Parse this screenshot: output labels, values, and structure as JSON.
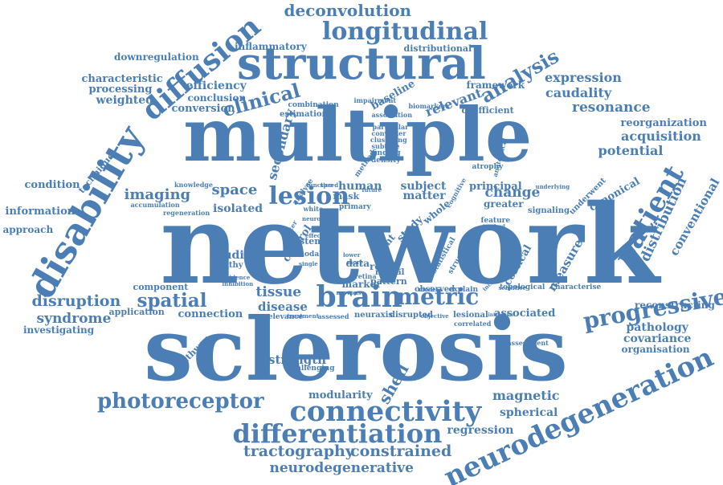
{
  "color": "#4a7eb5",
  "words": [
    {
      "text": "network"
    },
    {
      "text": "sclerosis"
    },
    {
      "text": "multiple"
    },
    {
      "text": "structural"
    },
    {
      "text": "neurodegeneration"
    },
    {
      "text": "disability"
    },
    {
      "text": "connectivity"
    },
    {
      "text": "differentiation"
    },
    {
      "text": "longitudinal"
    },
    {
      "text": "brain"
    },
    {
      "text": "photoreceptor"
    },
    {
      "text": "progressive"
    },
    {
      "text": "diffusion"
    },
    {
      "text": "patient"
    },
    {
      "text": "metric"
    },
    {
      "text": "lesion"
    },
    {
      "text": "deconvolution"
    },
    {
      "text": "clinical"
    },
    {
      "text": "analysis"
    },
    {
      "text": "resonance"
    },
    {
      "text": "tractography"
    },
    {
      "text": "constrained"
    },
    {
      "text": "neurodegenerative"
    },
    {
      "text": "distribution"
    },
    {
      "text": "spatial"
    },
    {
      "text": "disruption"
    },
    {
      "text": "imaging"
    },
    {
      "text": "space"
    },
    {
      "text": "shell"
    },
    {
      "text": "magnetic"
    },
    {
      "text": "syndrome"
    },
    {
      "text": "conventional"
    },
    {
      "text": "measure"
    },
    {
      "text": "expression"
    },
    {
      "text": "caudality"
    },
    {
      "text": "acquisition"
    },
    {
      "text": "potential"
    },
    {
      "text": "change"
    },
    {
      "text": "strength"
    },
    {
      "text": "spherical"
    },
    {
      "text": "regression"
    },
    {
      "text": "modularity"
    },
    {
      "text": "tissue"
    },
    {
      "text": "disease"
    },
    {
      "text": "pathology"
    },
    {
      "text": "covariance"
    },
    {
      "text": "organisation"
    },
    {
      "text": "reconstructing"
    },
    {
      "text": "efficiency"
    },
    {
      "text": "weighted"
    },
    {
      "text": "characteristic"
    },
    {
      "text": "processing"
    },
    {
      "text": "conversion"
    },
    {
      "text": "conclusion"
    },
    {
      "text": "downregulation"
    },
    {
      "text": "inflammatory"
    },
    {
      "text": "distributional"
    },
    {
      "text": "framework"
    },
    {
      "text": "reorganization"
    },
    {
      "text": "relevant"
    },
    {
      "text": "secondary"
    },
    {
      "text": "human"
    },
    {
      "text": "subject"
    },
    {
      "text": "matter"
    },
    {
      "text": "isolated"
    },
    {
      "text": "studies"
    },
    {
      "text": "healthy"
    },
    {
      "text": "condition"
    },
    {
      "text": "information"
    },
    {
      "text": "approach"
    },
    {
      "text": "technique"
    },
    {
      "text": "connection"
    },
    {
      "text": "investigating"
    },
    {
      "text": "application"
    },
    {
      "text": "component"
    },
    {
      "text": "pathway"
    },
    {
      "text": "principal"
    },
    {
      "text": "canonical"
    },
    {
      "text": "cortical"
    },
    {
      "text": "associated"
    },
    {
      "text": "baseline"
    },
    {
      "text": "coefficient"
    },
    {
      "text": "estimation"
    },
    {
      "text": "combination"
    },
    {
      "text": "control"
    },
    {
      "text": "result"
    },
    {
      "text": "marker"
    },
    {
      "text": "data"
    },
    {
      "text": "whole"
    },
    {
      "text": "study"
    },
    {
      "text": "sdmt"
    },
    {
      "text": "greater"
    },
    {
      "text": "underwent"
    },
    {
      "text": "signaling"
    },
    {
      "text": "characterise"
    },
    {
      "text": "assessment"
    },
    {
      "text": "neuraxis"
    },
    {
      "text": "disrupted"
    },
    {
      "text": "challenging"
    },
    {
      "text": "relevance"
    },
    {
      "text": "mask"
    },
    {
      "text": "primary"
    },
    {
      "text": "stem"
    },
    {
      "text": "pattern"
    },
    {
      "text": "neural"
    },
    {
      "text": "observed"
    },
    {
      "text": "explain"
    },
    {
      "text": "topological"
    },
    {
      "text": "lesional"
    },
    {
      "text": "correlated"
    },
    {
      "text": "feature"
    },
    {
      "text": "atrophy"
    },
    {
      "text": "impairment"
    },
    {
      "text": "biomarkers"
    },
    {
      "text": "association"
    },
    {
      "text": "particular"
    },
    {
      "text": "converter"
    },
    {
      "text": "clustering"
    },
    {
      "text": "subtype"
    },
    {
      "text": "finding"
    },
    {
      "text": "density"
    },
    {
      "text": "method"
    },
    {
      "text": "anatomical"
    },
    {
      "text": "knowledge"
    },
    {
      "text": "accumulation"
    },
    {
      "text": "regeneration"
    },
    {
      "text": "analyse"
    },
    {
      "text": "white"
    },
    {
      "text": "modal"
    },
    {
      "text": "evidence"
    },
    {
      "text": "inhibition"
    },
    {
      "text": "treatment"
    },
    {
      "text": "assessed"
    },
    {
      "text": "objective"
    },
    {
      "text": "introduce"
    },
    {
      "text": "retina"
    },
    {
      "text": "lower"
    },
    {
      "text": "more"
    },
    {
      "text": "nervous"
    },
    {
      "text": "statistical"
    },
    {
      "text": "structure"
    },
    {
      "text": "function"
    },
    {
      "text": "speed"
    },
    {
      "text": "effect"
    },
    {
      "text": "neuron"
    },
    {
      "text": "cognitive"
    },
    {
      "text": "increase"
    },
    {
      "text": "sensitive"
    },
    {
      "text": "involved"
    },
    {
      "text": "underlying"
    },
    {
      "text": "single"
    },
    {
      "text": "better"
    },
    {
      "text": "future"
    },
    {
      "text": "model"
    }
  ]
}
